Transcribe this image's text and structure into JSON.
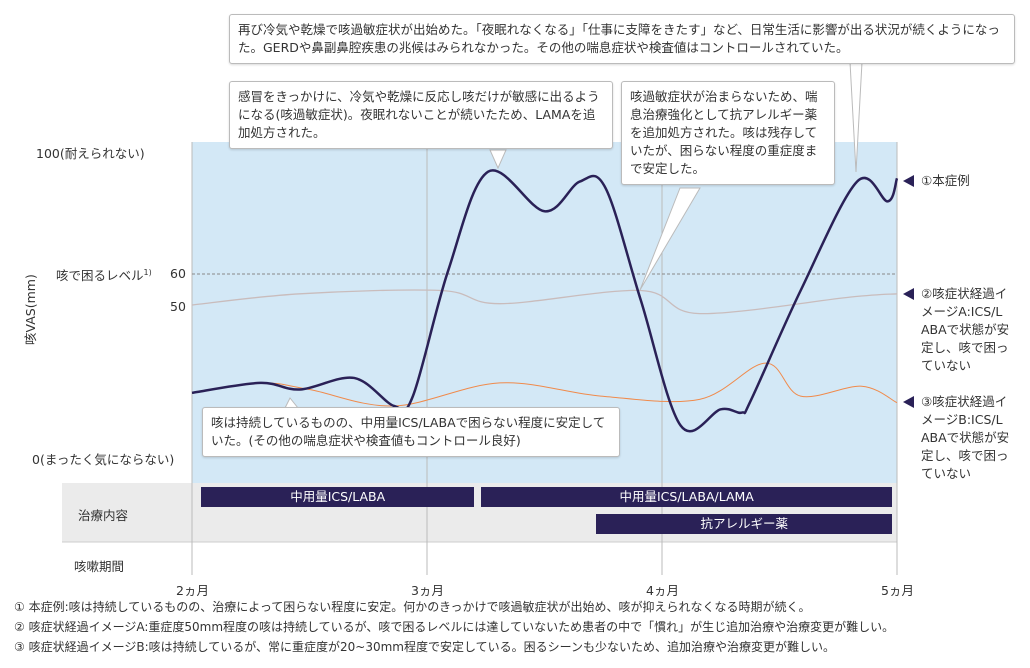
{
  "chart_data": {
    "type": "line",
    "ylabel": "咳VAS(mm)",
    "ylim": [
      0,
      100
    ],
    "xlim": [
      2,
      5
    ],
    "y_ticks": [
      {
        "value": 100,
        "label": "100(耐えられない)"
      },
      {
        "value": 60,
        "label": "60"
      },
      {
        "value": 50,
        "label": "50"
      },
      {
        "value": 0,
        "label": "0(まったく気にならない)"
      }
    ],
    "threshold": {
      "value": 60,
      "label": "咳で困るレベル",
      "sup": "1)"
    },
    "x_ticks": [
      {
        "value": 2,
        "label": "2ヵ月"
      },
      {
        "value": 3,
        "label": "3ヵ月"
      },
      {
        "value": 4,
        "label": "4ヵ月"
      },
      {
        "value": 5,
        "label": "5ヵ月"
      }
    ],
    "series": [
      {
        "name": "①本症例",
        "color": "#2a2157",
        "x": [
          2,
          2.29,
          2.46,
          2.69,
          2.86,
          2.94,
          3.09,
          3.26,
          3.5,
          3.65,
          3.76,
          3.91,
          4.08,
          4.25,
          4.34,
          4.38,
          4.59,
          4.83,
          4.96,
          5
        ],
        "y": [
          24,
          27,
          25,
          28.5,
          20,
          23,
          61,
          91,
          79,
          88,
          86,
          52,
          14,
          19,
          18,
          22,
          55,
          88,
          82,
          89
        ]
      },
      {
        "name": "②咳症状経過イメージA",
        "color": "#c9bcbc",
        "x": [
          2,
          2.46,
          3.06,
          3.31,
          3.91,
          4.16,
          4.8,
          5
        ],
        "y": [
          50.6,
          54,
          55,
          51,
          55,
          48,
          53,
          54
        ]
      },
      {
        "name": "③咳症状経過イメージB",
        "color": "#f08a4b",
        "x": [
          2,
          2.29,
          2.5,
          2.86,
          3.31,
          3.74,
          4.16,
          4.44,
          4.59,
          4.85,
          5
        ],
        "y": [
          24,
          27,
          25,
          20,
          27,
          23,
          22,
          33,
          23,
          26,
          21
        ]
      }
    ],
    "legend": [
      {
        "label": "①本症例"
      },
      {
        "label": "②咳症状経過イメージA:ICS/LABAで状態が安定し、咳で困っていない"
      },
      {
        "label": "③咳症状経過イメージB:ICS/LABAで状態が安定し、咳で困っていない"
      }
    ]
  },
  "callouts": [
    "再び冷気や乾燥で咳過敏症状が出始めた。「夜眠れなくなる」「仕事に支障をきたす」など、日常生活に影響が出る状況が続くようになった。GERDや鼻副鼻腔疾患の兆候はみられなかった。その他の喘息症状や検査値はコントロールされていた。",
    "感冒をきっかけに、冷気や乾燥に反応し咳だけが敏感に出るようになる(咳過敏症状)。夜眠れないことが続いたため、LAMAを追加処方された。",
    "咳過敏症状が治まらないため、喘息治療強化として抗アレルギー薬を追加処方された。咳は残存していたが、困らない程度の重症度まで安定した。",
    "咳は持続しているものの、中用量ICS/LABAで困らない程度に安定していた。(その他の喘息症状や検査値もコントロール良好)"
  ],
  "treatment": {
    "row_label": "治療内容",
    "period_label": "咳嗽期間",
    "bars": [
      {
        "label": "中用量ICS/LABA",
        "start": 2.04,
        "end": 3.2,
        "row": 0
      },
      {
        "label": "中用量ICS/LABA/LAMA",
        "start": 3.23,
        "end": 4.98,
        "row": 0
      },
      {
        "label": "抗アレルギー薬",
        "start": 3.72,
        "end": 4.98,
        "row": 1
      }
    ]
  },
  "footnotes": [
    "① 本症例:咳は持続しているものの、治療によって困らない程度に安定。何かのきっかけで咳過敏症状が出始め、咳が抑えられなくなる時期が続く。",
    "② 咳症状経過イメージA:重症度50mm程度の咳は持続しているが、咳で困るレベルには達していないため患者の中で「慣れ」が生じ追加治療や治療変更が難しい。",
    "③ 咳症状経過イメージB:咳は持続しているが、常に重症度が20~30mm程度で安定している。困るシーンも少ないため、追加治療や治療変更が難しい。"
  ]
}
